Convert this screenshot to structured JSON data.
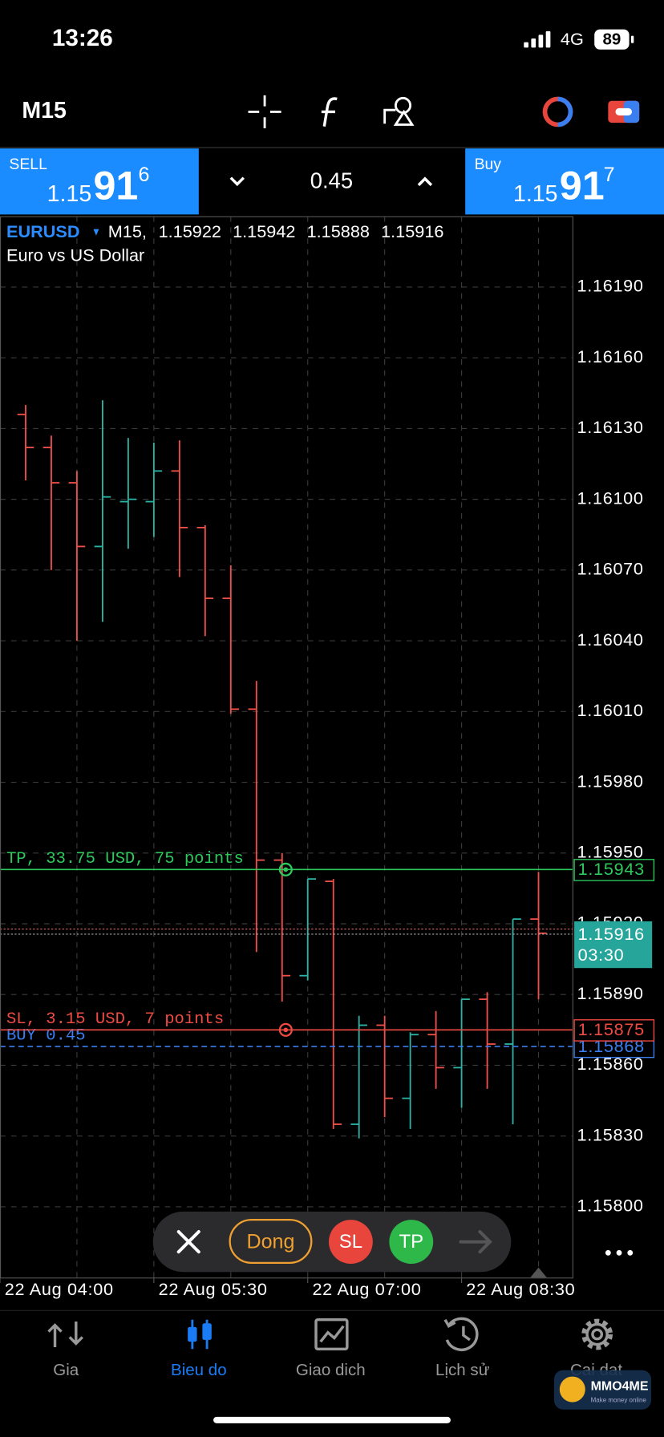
{
  "status_bar": {
    "time": "13:26",
    "network": "4G",
    "battery": "89"
  },
  "toolbar": {
    "timeframe": "M15"
  },
  "trade_panel": {
    "sell_label": "SELL",
    "sell_price": {
      "prefix": "1.15",
      "pips": "91",
      "fraction": "6"
    },
    "volume": "0.45",
    "buy_label": "Buy",
    "buy_price": {
      "prefix": "1.15",
      "pips": "91",
      "fraction": "7"
    }
  },
  "chart": {
    "type": "ohlc",
    "symbol": "EURUSD",
    "timeframe_label": "M15,",
    "description": "Euro vs US Dollar",
    "ylim": [
      1.1577,
      1.1622
    ],
    "yticks": [
      {
        "value": 1.1619,
        "label": "1.16190"
      },
      {
        "value": 1.1616,
        "label": "1.16160"
      },
      {
        "value": 1.1613,
        "label": "1.16130"
      },
      {
        "value": 1.161,
        "label": "1.16100"
      },
      {
        "value": 1.1607,
        "label": "1.16070"
      },
      {
        "value": 1.1604,
        "label": "1.16040"
      },
      {
        "value": 1.1601,
        "label": "1.16010"
      },
      {
        "value": 1.1598,
        "label": "1.15980"
      },
      {
        "value": 1.1595,
        "label": "1.15950"
      },
      {
        "value": 1.1592,
        "label": "1.15920"
      },
      {
        "value": 1.1589,
        "label": "1.15890"
      },
      {
        "value": 1.1586,
        "label": "1.15860"
      },
      {
        "value": 1.1583,
        "label": "1.15830"
      },
      {
        "value": 1.158,
        "label": "1.15800"
      }
    ],
    "xticks": [
      "22 Aug 04:00",
      "22 Aug 05:30",
      "22 Aug 07:00",
      "22 Aug 08:30"
    ],
    "grid": true,
    "up_color": "#2bb3a5",
    "down_color": "#f0504a",
    "bars": [
      {
        "open": 1.16136,
        "high": 1.1614,
        "low": 1.16108,
        "close": 1.16122
      },
      {
        "open": 1.16122,
        "high": 1.16127,
        "low": 1.1607,
        "close": 1.16107
      },
      {
        "open": 1.16107,
        "high": 1.16112,
        "low": 1.1604,
        "close": 1.1608
      },
      {
        "open": 1.1608,
        "high": 1.16142,
        "low": 1.16048,
        "close": 1.16101
      },
      {
        "open": 1.16099,
        "high": 1.16126,
        "low": 1.16079,
        "close": 1.161
      },
      {
        "open": 1.16099,
        "high": 1.16124,
        "low": 1.16084,
        "close": 1.16112
      },
      {
        "open": 1.16112,
        "high": 1.16125,
        "low": 1.16067,
        "close": 1.16088
      },
      {
        "open": 1.16088,
        "high": 1.16089,
        "low": 1.16042,
        "close": 1.16058
      },
      {
        "open": 1.16058,
        "high": 1.16072,
        "low": 1.16009,
        "close": 1.16011
      },
      {
        "open": 1.16011,
        "high": 1.16023,
        "low": 1.15908,
        "close": 1.15947
      },
      {
        "open": 1.15947,
        "high": 1.1595,
        "low": 1.15887,
        "close": 1.15898
      },
      {
        "open": 1.15898,
        "high": 1.15939,
        "low": 1.15896,
        "close": 1.15939
      },
      {
        "open": 1.15938,
        "high": 1.15939,
        "low": 1.15833,
        "close": 1.15835
      },
      {
        "open": 1.15835,
        "high": 1.15881,
        "low": 1.15829,
        "close": 1.15877
      },
      {
        "open": 1.15877,
        "high": 1.15881,
        "low": 1.15838,
        "close": 1.15846
      },
      {
        "open": 1.15846,
        "high": 1.15874,
        "low": 1.15833,
        "close": 1.15873
      },
      {
        "open": 1.15873,
        "high": 1.15883,
        "low": 1.1585,
        "close": 1.15859
      },
      {
        "open": 1.15859,
        "high": 1.15888,
        "low": 1.15842,
        "close": 1.15888
      },
      {
        "open": 1.15888,
        "high": 1.15891,
        "low": 1.1585,
        "close": 1.15869
      },
      {
        "open": 1.15869,
        "high": 1.15922,
        "low": 1.15835,
        "close": 1.15922
      },
      {
        "open": 1.15922,
        "high": 1.15942,
        "low": 1.15888,
        "close": 1.15916
      }
    ],
    "tp": {
      "label": "TP, 33.75 USD, 75 points",
      "price": 1.15943,
      "color": "#2ec95c"
    },
    "sl": {
      "label": "SL, 3.15 USD, 7 points",
      "price": 1.15875,
      "color": "#ee4b42"
    },
    "position": {
      "label": "BUY 0.45",
      "price": 1.15868,
      "color": "#3a7ef0"
    },
    "bid": {
      "price": 1.15916,
      "countdown": "03:30",
      "color": "#26a69a"
    },
    "ask": {
      "price": 1.15917
    }
  },
  "order_bar": {
    "close_button": "Dong",
    "sl_button": "SL",
    "tp_button": "TP"
  },
  "nav": {
    "items": [
      "Gia",
      "Bieu do",
      "Giao dich",
      "Lịch sử",
      "Cai dat"
    ],
    "active": 1
  },
  "watermark": {
    "title": "MMO4ME",
    "subtitle": "Make money online"
  }
}
